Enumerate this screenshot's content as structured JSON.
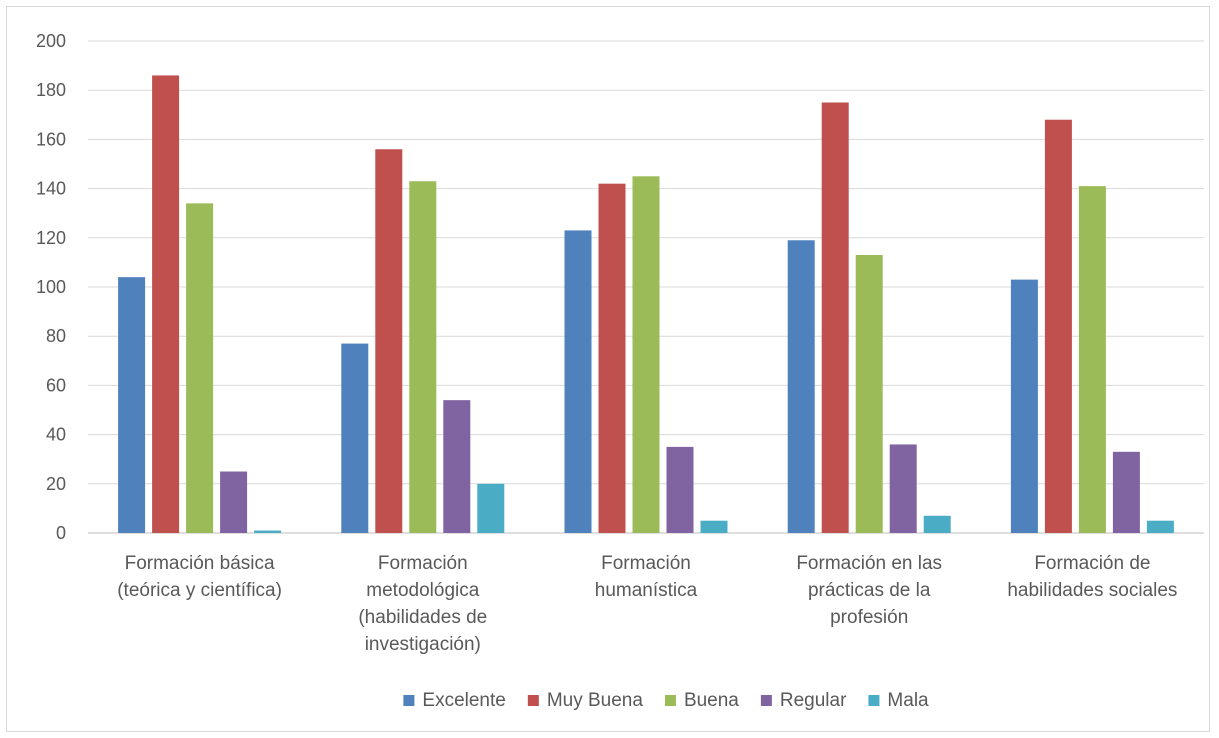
{
  "chart_data": {
    "type": "bar",
    "categories": [
      [
        "Formación básica",
        "(teórica y científica)"
      ],
      [
        "Formación",
        "metodológica",
        "(habilidades de",
        "investigación)"
      ],
      [
        "Formación",
        "humanística"
      ],
      [
        "Formación en las",
        "prácticas de la",
        "profesión"
      ],
      [
        "Formación de",
        "habilidades sociales"
      ]
    ],
    "series": [
      {
        "name": "Excelente",
        "color": "#4f81bd",
        "values": [
          104,
          77,
          123,
          119,
          103
        ]
      },
      {
        "name": "Muy Buena",
        "color": "#c0504d",
        "values": [
          186,
          156,
          142,
          175,
          168
        ]
      },
      {
        "name": "Buena",
        "color": "#9bbb59",
        "values": [
          134,
          143,
          145,
          113,
          141
        ]
      },
      {
        "name": "Regular",
        "color": "#8064a2",
        "values": [
          25,
          54,
          35,
          36,
          33
        ]
      },
      {
        "name": "Mala",
        "color": "#4bacc6",
        "values": [
          1,
          20,
          5,
          7,
          5
        ]
      }
    ],
    "ylim": [
      0,
      200
    ],
    "yticks": [
      0,
      20,
      40,
      60,
      80,
      100,
      120,
      140,
      160,
      180,
      200
    ],
    "grid": true,
    "legend_position": "bottom"
  }
}
